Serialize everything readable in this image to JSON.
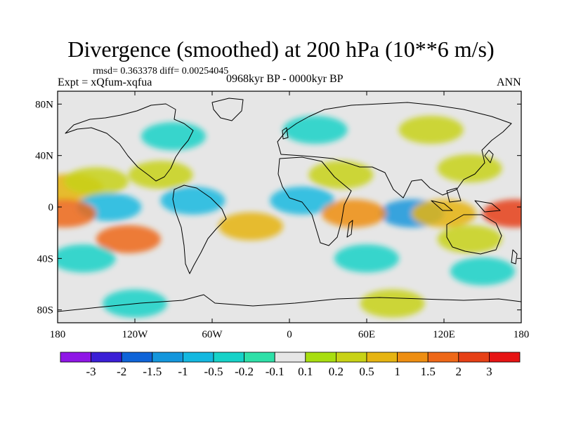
{
  "chart_data": {
    "type": "heatmap",
    "title": "Divergence (smoothed) at 200 hPa (10**6 m/s)",
    "stats_text": "rmsd= 0.363378 diff= 0.00254045",
    "experiment_text": "Expt = xQfum-xqfua",
    "period_text": "0968kyr BP - 0000kyr BP",
    "season_text": "ANN",
    "xlim": [
      -180,
      180
    ],
    "ylim": [
      -90,
      90
    ],
    "x_ticks": [
      {
        "value": -180,
        "label": "180"
      },
      {
        "value": -120,
        "label": "120W"
      },
      {
        "value": -60,
        "label": "60W"
      },
      {
        "value": 0,
        "label": "0"
      },
      {
        "value": 60,
        "label": "60E"
      },
      {
        "value": 120,
        "label": "120E"
      },
      {
        "value": 180,
        "label": "180"
      }
    ],
    "y_ticks": [
      {
        "value": 80,
        "label": "80N"
      },
      {
        "value": 40,
        "label": "40N"
      },
      {
        "value": 0,
        "label": "0"
      },
      {
        "value": -40,
        "label": "40S"
      },
      {
        "value": -80,
        "label": "80S"
      }
    ],
    "contour_levels": [
      "-3",
      "-2",
      "-1.5",
      "-1",
      "-0.5",
      "-0.2",
      "-0.1",
      "0.1",
      "0.2",
      "0.5",
      "1",
      "1.5",
      "2",
      "3"
    ],
    "colors": [
      "#8f16e6",
      "#3b1fd6",
      "#0f64d8",
      "#1496dc",
      "#14b8e0",
      "#16d2c8",
      "#2ee0a8",
      "#e6e6e6",
      "#a8de10",
      "#c8d216",
      "#e6b412",
      "#ee8e12",
      "#ee6818",
      "#e64016",
      "#e61414"
    ],
    "anomaly_bins": [
      {
        "lon": -170,
        "lat": 15,
        "bin": 10
      },
      {
        "lon": -150,
        "lat": 20,
        "bin": 9
      },
      {
        "lon": -100,
        "lat": 25,
        "bin": 9
      },
      {
        "lon": 40,
        "lat": 25,
        "bin": 9
      },
      {
        "lon": 140,
        "lat": 30,
        "bin": 9
      },
      {
        "lon": -140,
        "lat": 0,
        "bin": 4
      },
      {
        "lon": -75,
        "lat": 5,
        "bin": 4
      },
      {
        "lon": 10,
        "lat": 5,
        "bin": 4
      },
      {
        "lon": 95,
        "lat": -5,
        "bin": 3
      },
      {
        "lon": -125,
        "lat": -25,
        "bin": 12
      },
      {
        "lon": -175,
        "lat": -5,
        "bin": 12
      },
      {
        "lon": 175,
        "lat": -5,
        "bin": 13
      },
      {
        "lon": 120,
        "lat": -5,
        "bin": 10
      },
      {
        "lon": 50,
        "lat": -5,
        "bin": 11
      },
      {
        "lon": -30,
        "lat": -15,
        "bin": 10
      },
      {
        "lon": 140,
        "lat": -25,
        "bin": 9
      },
      {
        "lon": -90,
        "lat": 55,
        "bin": 5
      },
      {
        "lon": 20,
        "lat": 60,
        "bin": 5
      },
      {
        "lon": 110,
        "lat": 60,
        "bin": 9
      },
      {
        "lon": -160,
        "lat": -40,
        "bin": 5
      },
      {
        "lon": 60,
        "lat": -40,
        "bin": 5
      },
      {
        "lon": 150,
        "lat": -50,
        "bin": 5
      },
      {
        "lon": -120,
        "lat": -75,
        "bin": 5
      },
      {
        "lon": 80,
        "lat": -75,
        "bin": 9
      }
    ]
  }
}
